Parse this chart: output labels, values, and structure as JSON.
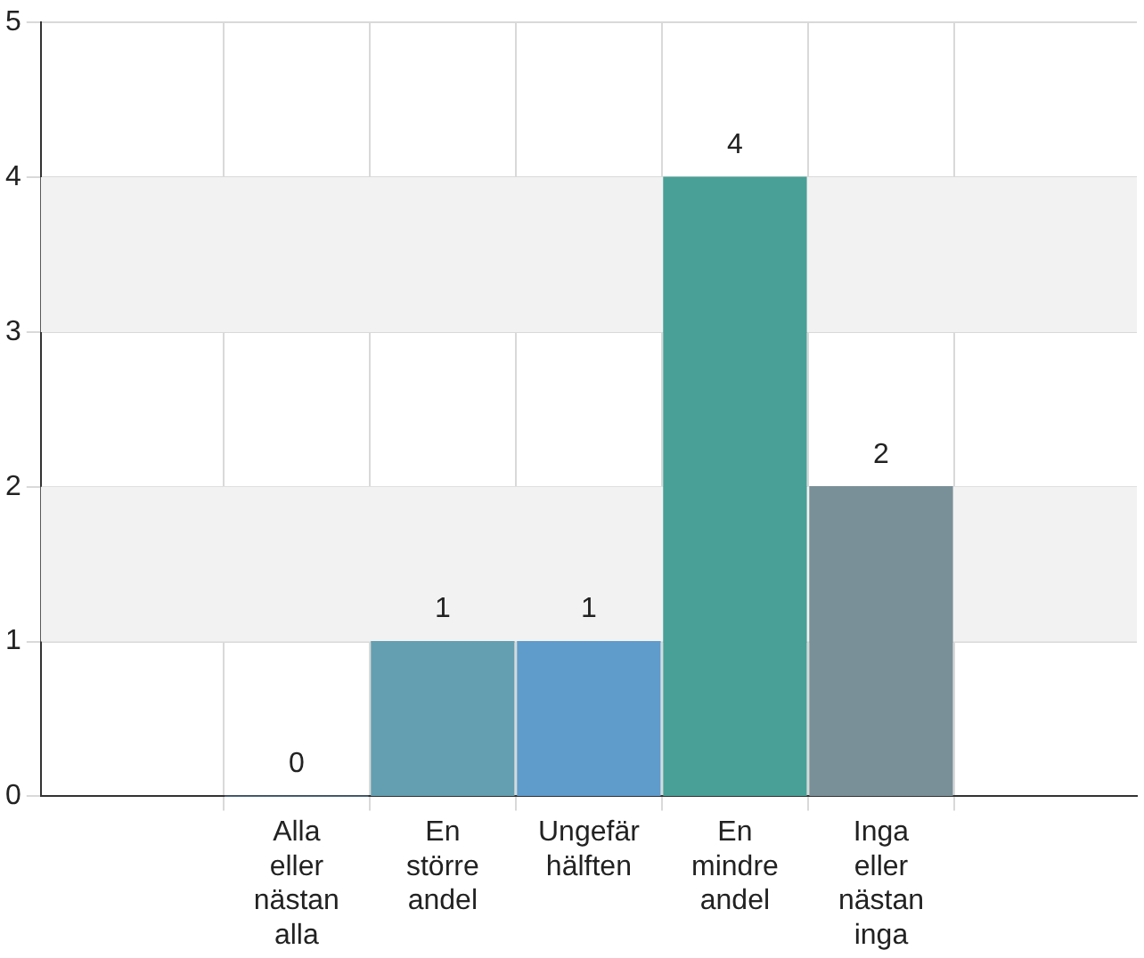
{
  "chart_data": {
    "type": "bar",
    "categories": [
      "Alla eller nästan alla",
      "En större andel",
      "Ungefär hälften",
      "En mindre andel",
      "Inga eller nästan inga"
    ],
    "values": [
      0,
      1,
      1,
      4,
      2
    ],
    "colors": [
      "#5f9bcb",
      "#639fb0",
      "#5f9bcb",
      "#48a096",
      "#7a9099"
    ],
    "ylim": [
      0,
      5
    ],
    "yticks": [
      0,
      1,
      2,
      3,
      4,
      5
    ],
    "grid": true,
    "data_labels": true,
    "bands": [
      {
        "axis": "y",
        "from": 1,
        "to": 2,
        "color": "#f2f2f2"
      },
      {
        "axis": "y",
        "from": 3,
        "to": 4,
        "color": "#f2f2f2"
      }
    ]
  }
}
